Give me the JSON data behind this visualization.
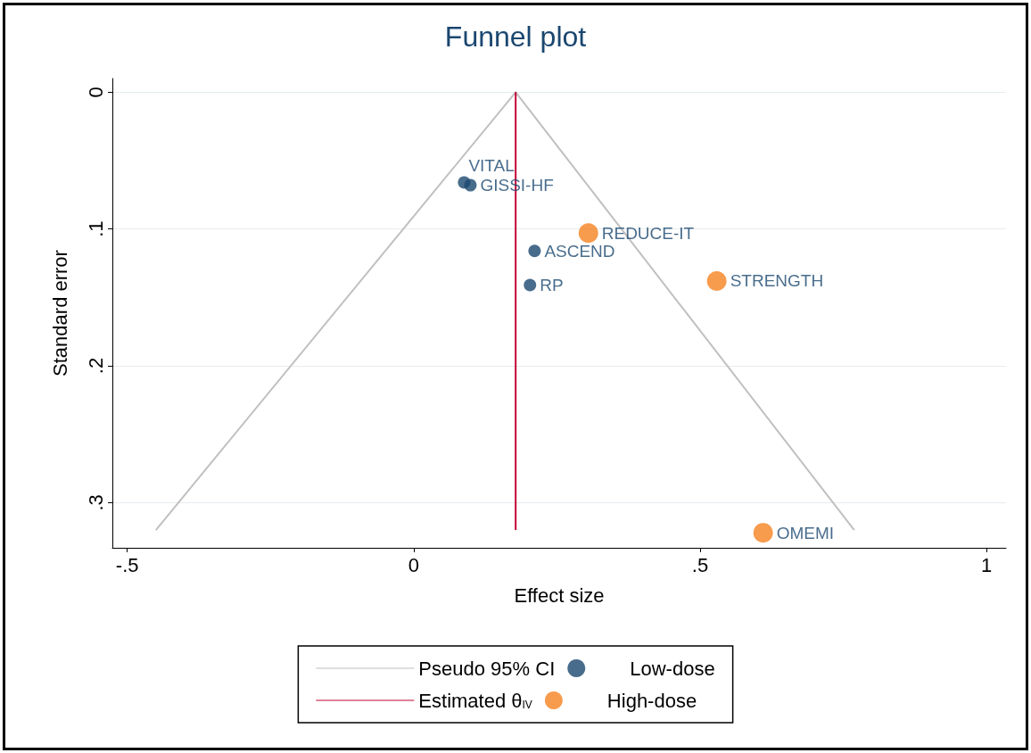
{
  "chart_data": {
    "type": "scatter",
    "title": "Funnel plot",
    "xlabel": "Effect size",
    "ylabel": "Standard error",
    "xlim": [
      -0.526,
      1.034
    ],
    "xticks": [
      {
        "value": -0.5,
        "label": "-.5"
      },
      0,
      {
        "value": 0.5,
        "label": ".5"
      },
      1
    ],
    "ylim": [
      0.333,
      -0.01
    ],
    "yticks": [
      0,
      {
        "value": 0.1,
        "label": ".1"
      },
      {
        "value": 0.2,
        "label": ".2"
      },
      {
        "value": 0.3,
        "label": ".3"
      }
    ],
    "grid": "y",
    "legend": "bottom",
    "marker": "circle",
    "series": [
      {
        "name": "Pseudo 95% CI",
        "type": "line",
        "color": "#c0c0c0",
        "marker": "none",
        "line_style": "solid",
        "x": [
          -0.45,
          0.178,
          0.769
        ],
        "values": [
          0.32,
          0,
          0.32
        ]
      },
      {
        "name": "Low-dose",
        "color": "#1a476f",
        "x": [
          0.088,
          0.099,
          0.211,
          0.203
        ],
        "values": [
          0.066,
          0.068,
          0.116,
          0.141
        ],
        "value_labels": [
          "VITAL",
          "GISSI-HF",
          "ASCEND",
          "RP"
        ]
      },
      {
        "name": "Estimated θ$_{IV}$",
        "type": "line",
        "color": "#c10534",
        "marker": "none",
        "line_style": "solid",
        "x": [
          0.178,
          0.178
        ],
        "values": [
          0,
          0.32
        ]
      },
      {
        "name": "High-dose",
        "color": "#f58220",
        "x": [
          0.305,
          0.529,
          0.61
        ],
        "values": [
          0.103,
          0.138,
          0.322
        ],
        "value_labels": [
          "REDUCE-IT",
          "STRENGTH",
          "OMEMI"
        ]
      }
    ]
  }
}
